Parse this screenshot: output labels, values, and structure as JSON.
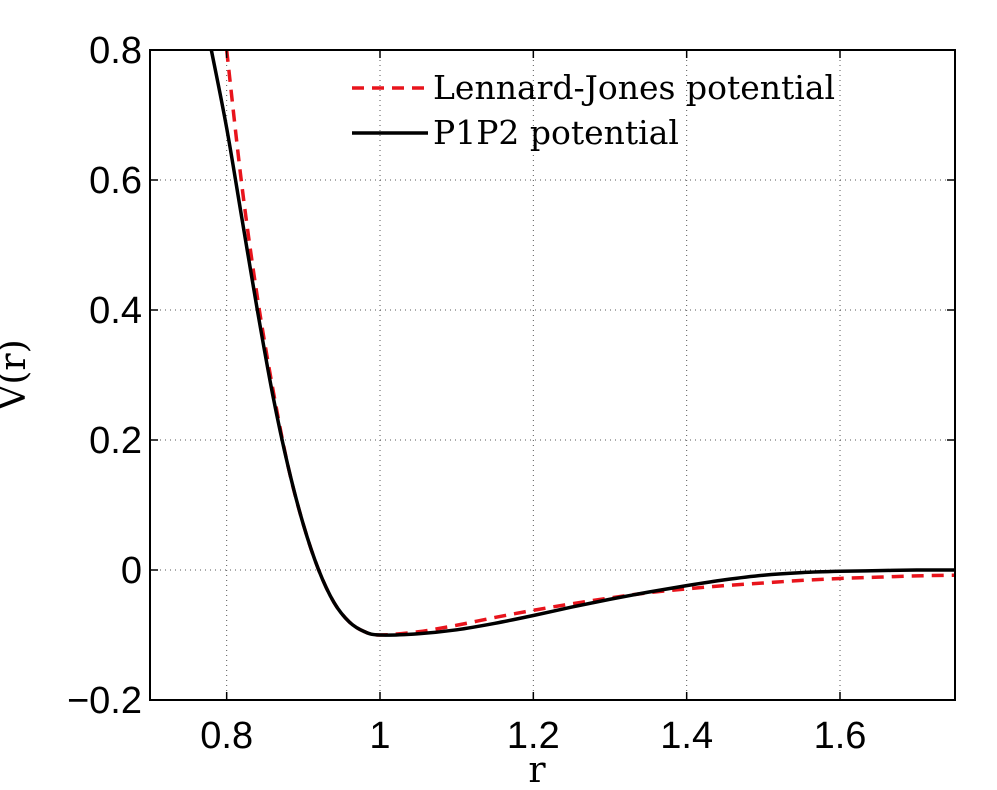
{
  "chart_data": {
    "type": "line",
    "xlabel": "r",
    "ylabel": "V(r)",
    "xlim": [
      0.7,
      1.75
    ],
    "ylim": [
      -0.2,
      0.8
    ],
    "xticks": [
      0.8,
      1.0,
      1.2,
      1.4,
      1.6
    ],
    "xtick_labels": [
      "0.8",
      "1",
      "1.2",
      "1.4",
      "1.6"
    ],
    "yticks": [
      -0.2,
      0.0,
      0.2,
      0.4,
      0.6,
      0.8
    ],
    "ytick_labels": [
      "−0.2",
      "0",
      "0.2",
      "0.4",
      "0.6",
      "0.8"
    ],
    "grid": true,
    "legend_position": "top-right",
    "series": [
      {
        "name": "Lennard-Jones potential",
        "color": "#e8141c",
        "style": "dashed",
        "x": [
          0.8,
          0.82,
          0.84,
          0.86,
          0.88,
          0.9,
          0.92,
          0.94,
          0.96,
          0.98,
          1.0,
          1.05,
          1.1,
          1.15,
          1.2,
          1.25,
          1.3,
          1.35,
          1.4,
          1.45,
          1.5,
          1.55,
          1.6,
          1.65,
          1.7,
          1.75
        ],
        "y": [
          0.8,
          0.59,
          0.42,
          0.28,
          0.16,
          0.07,
          0.0,
          -0.05,
          -0.08,
          -0.095,
          -0.1,
          -0.095,
          -0.085,
          -0.073,
          -0.062,
          -0.052,
          -0.043,
          -0.035,
          -0.029,
          -0.024,
          -0.02,
          -0.016,
          -0.013,
          -0.011,
          -0.009,
          -0.008
        ]
      },
      {
        "name": "P1P2 potential",
        "color": "#000000",
        "style": "solid",
        "x": [
          0.78,
          0.8,
          0.82,
          0.84,
          0.86,
          0.88,
          0.9,
          0.92,
          0.94,
          0.96,
          0.98,
          1.0,
          1.05,
          1.1,
          1.15,
          1.2,
          1.25,
          1.3,
          1.35,
          1.4,
          1.45,
          1.5,
          1.55,
          1.6,
          1.65,
          1.7,
          1.75
        ],
        "y": [
          0.8,
          0.68,
          0.54,
          0.4,
          0.27,
          0.16,
          0.07,
          0.0,
          -0.05,
          -0.08,
          -0.095,
          -0.1,
          -0.098,
          -0.092,
          -0.082,
          -0.07,
          -0.057,
          -0.045,
          -0.034,
          -0.024,
          -0.015,
          -0.008,
          -0.004,
          -0.002,
          -0.001,
          0.0,
          0.0
        ]
      }
    ]
  }
}
